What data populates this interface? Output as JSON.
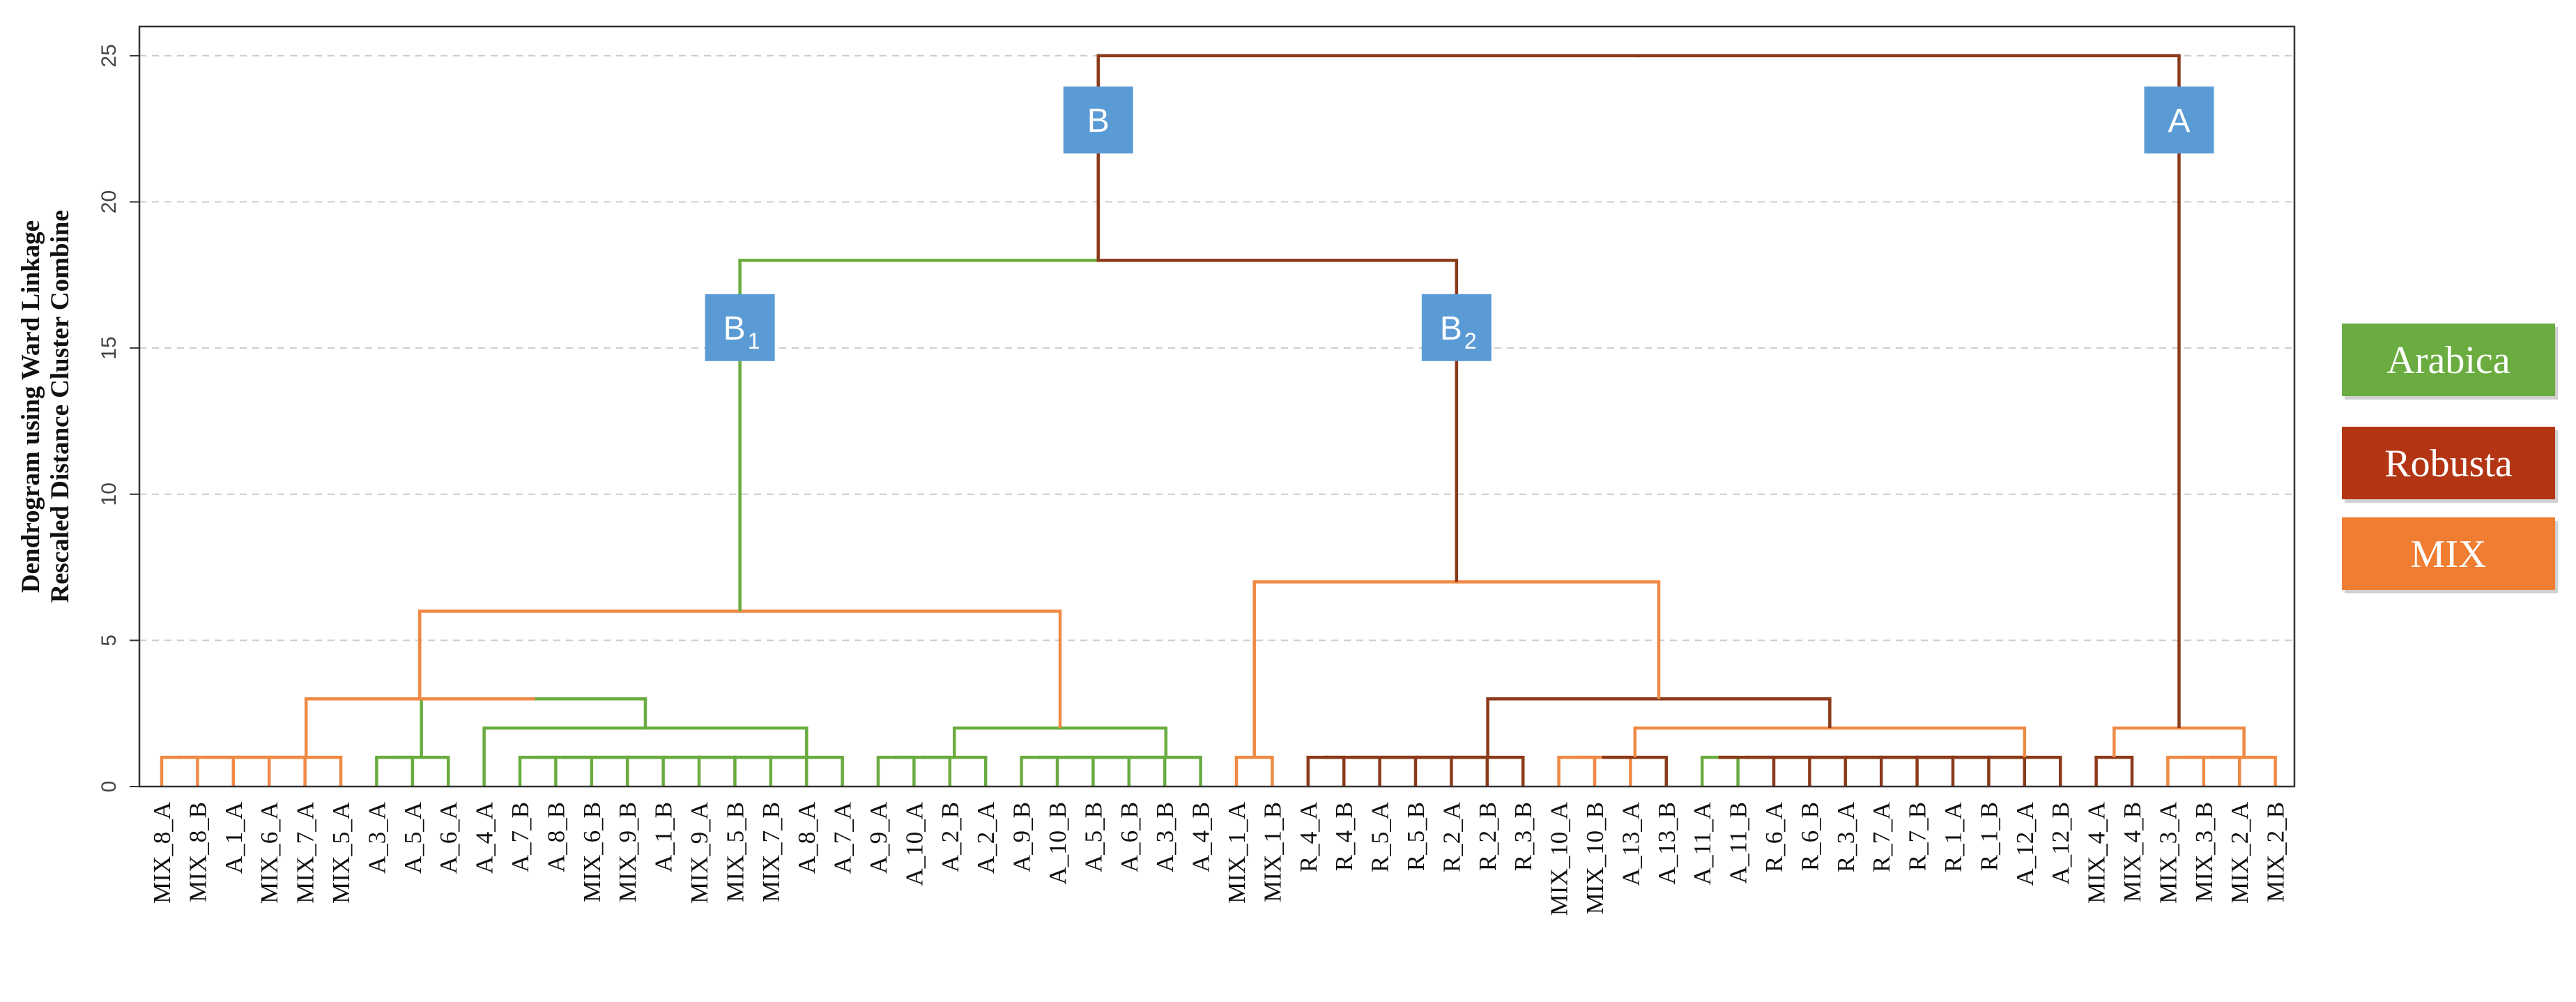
{
  "chart_data": {
    "type": "dendrogram",
    "ylabel": [
      "Dendrogram using Ward Linkage",
      "Rescaled Distance Cluster Combine"
    ],
    "ylim": [
      0,
      26
    ],
    "yticks": [
      0,
      5,
      10,
      15,
      20,
      25
    ],
    "grid": true,
    "leaves": [
      {
        "label": "MIX_8_A",
        "group": "MIX"
      },
      {
        "label": "MIX_8_B",
        "group": "MIX"
      },
      {
        "label": "A_1_A",
        "group": "Arabica"
      },
      {
        "label": "MIX_6_A",
        "group": "MIX"
      },
      {
        "label": "MIX_7_A",
        "group": "MIX"
      },
      {
        "label": "MIX_5_A",
        "group": "MIX"
      },
      {
        "label": "A_3_A",
        "group": "Arabica"
      },
      {
        "label": "A_5_A",
        "group": "Arabica"
      },
      {
        "label": "A_6_A",
        "group": "Arabica"
      },
      {
        "label": "A_4_A",
        "group": "Arabica"
      },
      {
        "label": "A_7_B",
        "group": "Arabica"
      },
      {
        "label": "A_8_B",
        "group": "Arabica"
      },
      {
        "label": "MIX_6_B",
        "group": "MIX"
      },
      {
        "label": "MIX_9_B",
        "group": "MIX"
      },
      {
        "label": "A_1_B",
        "group": "Arabica"
      },
      {
        "label": "MIX_9_A",
        "group": "MIX"
      },
      {
        "label": "MIX_5_B",
        "group": "MIX"
      },
      {
        "label": "MIX_7_B",
        "group": "MIX"
      },
      {
        "label": "A_8_A",
        "group": "Arabica"
      },
      {
        "label": "A_7_A",
        "group": "Arabica"
      },
      {
        "label": "A_9_A",
        "group": "Arabica"
      },
      {
        "label": "A_10_A",
        "group": "Arabica"
      },
      {
        "label": "A_2_B",
        "group": "Arabica"
      },
      {
        "label": "A_2_A",
        "group": "Arabica"
      },
      {
        "label": "A_9_B",
        "group": "Arabica"
      },
      {
        "label": "A_10_B",
        "group": "Arabica"
      },
      {
        "label": "A_5_B",
        "group": "Arabica"
      },
      {
        "label": "A_6_B",
        "group": "Arabica"
      },
      {
        "label": "A_3_B",
        "group": "Arabica"
      },
      {
        "label": "A_4_B",
        "group": "Arabica"
      },
      {
        "label": "MIX_1_A",
        "group": "MIX"
      },
      {
        "label": "MIX_1_B",
        "group": "MIX"
      },
      {
        "label": "R_4_A",
        "group": "Robusta"
      },
      {
        "label": "R_4_B",
        "group": "Robusta"
      },
      {
        "label": "R_5_A",
        "group": "Robusta"
      },
      {
        "label": "R_5_B",
        "group": "Robusta"
      },
      {
        "label": "R_2_A",
        "group": "Robusta"
      },
      {
        "label": "R_2_B",
        "group": "Robusta"
      },
      {
        "label": "R_3_B",
        "group": "Robusta"
      },
      {
        "label": "MIX_10_A",
        "group": "MIX"
      },
      {
        "label": "MIX_10_B",
        "group": "MIX"
      },
      {
        "label": "A_13_A",
        "group": "Arabica"
      },
      {
        "label": "A_13_B",
        "group": "Arabica"
      },
      {
        "label": "A_11_A",
        "group": "Arabica"
      },
      {
        "label": "A_11_B",
        "group": "Arabica"
      },
      {
        "label": "R_6_A",
        "group": "Robusta"
      },
      {
        "label": "R_6_B",
        "group": "Robusta"
      },
      {
        "label": "R_3_A",
        "group": "Robusta"
      },
      {
        "label": "R_7_A",
        "group": "Robusta"
      },
      {
        "label": "R_7_B",
        "group": "Robusta"
      },
      {
        "label": "R_1_A",
        "group": "Robusta"
      },
      {
        "label": "R_1_B",
        "group": "Robusta"
      },
      {
        "label": "A_12_A",
        "group": "Arabica"
      },
      {
        "label": "A_12_B",
        "group": "Arabica"
      },
      {
        "label": "MIX_4_A",
        "group": "MIX"
      },
      {
        "label": "MIX_4_B",
        "group": "MIX"
      },
      {
        "label": "MIX_3_A",
        "group": "MIX"
      },
      {
        "label": "MIX_3_B",
        "group": "MIX"
      },
      {
        "label": "MIX_2_A",
        "group": "MIX"
      },
      {
        "label": "MIX_2_B",
        "group": "MIX"
      }
    ],
    "links": [
      {
        "id": "n1",
        "children": [
          0,
          1
        ],
        "height": 1,
        "group": "MIX"
      },
      {
        "id": "n2",
        "children": [
          "n1",
          2
        ],
        "height": 1,
        "group": "MIX"
      },
      {
        "id": "n3",
        "children": [
          "n2",
          3
        ],
        "height": 1,
        "group": "MIX"
      },
      {
        "id": "n4",
        "children": [
          "n3",
          4
        ],
        "height": 1,
        "group": "MIX"
      },
      {
        "id": "n5",
        "children": [
          "n4",
          5
        ],
        "height": 1,
        "group": "MIX"
      },
      {
        "id": "n6",
        "children": [
          6,
          7
        ],
        "height": 1,
        "group": "Arabica"
      },
      {
        "id": "n7",
        "children": [
          "n6",
          8
        ],
        "height": 1,
        "group": "Arabica"
      },
      {
        "id": "n8",
        "children": [
          10,
          11
        ],
        "height": 1,
        "group": "Arabica"
      },
      {
        "id": "n9",
        "children": [
          "n8",
          12
        ],
        "height": 1,
        "group": "Arabica"
      },
      {
        "id": "n10",
        "children": [
          "n9",
          13
        ],
        "height": 1,
        "group": "Arabica"
      },
      {
        "id": "n11",
        "children": [
          "n10",
          14
        ],
        "height": 1,
        "group": "Arabica"
      },
      {
        "id": "n12",
        "children": [
          "n11",
          15
        ],
        "height": 1,
        "group": "Arabica"
      },
      {
        "id": "n13",
        "children": [
          "n12",
          16
        ],
        "height": 1,
        "group": "Arabica"
      },
      {
        "id": "n14",
        "children": [
          "n13",
          17
        ],
        "height": 1,
        "group": "Arabica"
      },
      {
        "id": "n15",
        "children": [
          "n14",
          18
        ],
        "height": 1,
        "group": "Arabica"
      },
      {
        "id": "n16",
        "children": [
          "n15",
          19
        ],
        "height": 1,
        "group": "Arabica"
      },
      {
        "id": "n17",
        "children": [
          9,
          "n16"
        ],
        "height": 2,
        "group": "Arabica"
      },
      {
        "id": "n18",
        "children": [
          "n7",
          "n17"
        ],
        "height": 3,
        "group": "Arabica"
      },
      {
        "id": "n19",
        "children": [
          "n5",
          "n18"
        ],
        "height": 3,
        "group": "MIX"
      },
      {
        "id": "n20",
        "children": [
          20,
          21
        ],
        "height": 1,
        "group": "Arabica"
      },
      {
        "id": "n21",
        "children": [
          "n20",
          22
        ],
        "height": 1,
        "group": "Arabica"
      },
      {
        "id": "n22",
        "children": [
          "n21",
          23
        ],
        "height": 1,
        "group": "Arabica"
      },
      {
        "id": "n23",
        "children": [
          24,
          25
        ],
        "height": 1,
        "group": "Arabica"
      },
      {
        "id": "n24",
        "children": [
          "n23",
          26
        ],
        "height": 1,
        "group": "Arabica"
      },
      {
        "id": "n25",
        "children": [
          "n24",
          27
        ],
        "height": 1,
        "group": "Arabica"
      },
      {
        "id": "n26",
        "children": [
          "n25",
          28
        ],
        "height": 1,
        "group": "Arabica"
      },
      {
        "id": "n27",
        "children": [
          "n26",
          29
        ],
        "height": 1,
        "group": "Arabica"
      },
      {
        "id": "n28",
        "children": [
          "n22",
          "n27"
        ],
        "height": 2,
        "group": "Arabica"
      },
      {
        "id": "n29",
        "children": [
          "n19",
          "n28"
        ],
        "height": 6,
        "group": "MIX"
      },
      {
        "id": "n30",
        "children": [
          30,
          31
        ],
        "height": 1,
        "group": "MIX"
      },
      {
        "id": "n31",
        "children": [
          32,
          33
        ],
        "height": 1,
        "group": "Robusta"
      },
      {
        "id": "n32",
        "children": [
          "n31",
          34
        ],
        "height": 1,
        "group": "Robusta"
      },
      {
        "id": "n33",
        "children": [
          "n32",
          35
        ],
        "height": 1,
        "group": "Robusta"
      },
      {
        "id": "n34",
        "children": [
          "n33",
          36
        ],
        "height": 1,
        "group": "Robusta"
      },
      {
        "id": "n35",
        "children": [
          "n34",
          37
        ],
        "height": 1,
        "group": "Robusta"
      },
      {
        "id": "n36",
        "children": [
          "n35",
          38
        ],
        "height": 1,
        "group": "Robusta"
      },
      {
        "id": "n37",
        "children": [
          39,
          40
        ],
        "height": 1,
        "group": "MIX"
      },
      {
        "id": "n38",
        "children": [
          "n37",
          41
        ],
        "height": 1,
        "group": "MIX"
      },
      {
        "id": "n39",
        "children": [
          "n38",
          42
        ],
        "height": 1,
        "group": "Robusta"
      },
      {
        "id": "n40",
        "children": [
          43,
          44
        ],
        "height": 1,
        "group": "Arabica"
      },
      {
        "id": "n41",
        "children": [
          "n40",
          45
        ],
        "height": 1,
        "group": "Robusta"
      },
      {
        "id": "n42",
        "children": [
          "n41",
          46
        ],
        "height": 1,
        "group": "Robusta"
      },
      {
        "id": "n43",
        "children": [
          "n42",
          47
        ],
        "height": 1,
        "group": "Robusta"
      },
      {
        "id": "n44",
        "children": [
          "n43",
          48
        ],
        "height": 1,
        "group": "Robusta"
      },
      {
        "id": "n45",
        "children": [
          "n44",
          49
        ],
        "height": 1,
        "group": "Robusta"
      },
      {
        "id": "n46",
        "children": [
          "n45",
          50
        ],
        "height": 1,
        "group": "Robusta"
      },
      {
        "id": "n47",
        "children": [
          "n46",
          51
        ],
        "height": 1,
        "group": "Robusta"
      },
      {
        "id": "n48",
        "children": [
          "n47",
          52
        ],
        "height": 1,
        "group": "Robusta"
      },
      {
        "id": "n49",
        "children": [
          "n48",
          53
        ],
        "height": 1,
        "group": "Robusta"
      },
      {
        "id": "n50",
        "children": [
          "n39",
          "n49"
        ],
        "height": 2,
        "group": "MIX"
      },
      {
        "id": "n51",
        "children": [
          "n36",
          "n50"
        ],
        "height": 3,
        "group": "Robusta"
      },
      {
        "id": "n52",
        "children": [
          "n30",
          "n51"
        ],
        "height": 7,
        "group": "MIX"
      },
      {
        "id": "n53",
        "children": [
          54,
          55
        ],
        "height": 1,
        "group": "Robusta"
      },
      {
        "id": "n54",
        "children": [
          56,
          57
        ],
        "height": 1,
        "group": "MIX"
      },
      {
        "id": "n55",
        "children": [
          "n54",
          58
        ],
        "height": 1,
        "group": "MIX"
      },
      {
        "id": "n56",
        "children": [
          "n55",
          59
        ],
        "height": 1,
        "group": "MIX"
      },
      {
        "id": "n57",
        "children": [
          "n53",
          "n56"
        ],
        "height": 2,
        "group": "MIX"
      },
      {
        "id": "n58",
        "children": [
          "n29",
          "n52"
        ],
        "height": 18,
        "group": "Robusta",
        "left_group": "Arabica"
      },
      {
        "id": "n59",
        "children": [
          "n58",
          "n57"
        ],
        "height": 25,
        "group": "Robusta"
      }
    ],
    "cluster_labels": [
      {
        "node": "n58",
        "label": "B",
        "sub": "",
        "at_height": 22.8
      },
      {
        "node": "n57",
        "label": "A",
        "sub": "",
        "at_height": 22.8
      },
      {
        "node": "n29",
        "label": "B",
        "sub": "1",
        "at_height": 15.7
      },
      {
        "node": "n52",
        "label": "B",
        "sub": "2",
        "at_height": 15.7
      }
    ],
    "legend": {
      "position": "right",
      "items": [
        {
          "label": "Arabica",
          "color": "#6aac40"
        },
        {
          "label": "Robusta",
          "color": "#b43513"
        },
        {
          "label": "MIX",
          "color": "#ef7d32"
        }
      ]
    },
    "colors": {
      "Arabica": "#6aac40",
      "Robusta": "#8b3a1a",
      "MIX": "#ef8a45",
      "box": "#5b9bd5",
      "grid": "#cccccc",
      "axis": "#333333"
    }
  }
}
